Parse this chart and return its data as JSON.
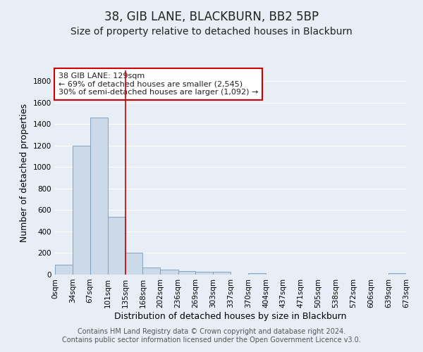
{
  "title": "38, GIB LANE, BLACKBURN, BB2 5BP",
  "subtitle": "Size of property relative to detached houses in Blackburn",
  "xlabel": "Distribution of detached houses by size in Blackburn",
  "ylabel": "Number of detached properties",
  "bin_edges": [
    0,
    34,
    67,
    101,
    135,
    168,
    202,
    236,
    269,
    303,
    337,
    370,
    404,
    437,
    471,
    505,
    538,
    572,
    606,
    639,
    673
  ],
  "bin_labels": [
    "0sqm",
    "34sqm",
    "67sqm",
    "101sqm",
    "135sqm",
    "168sqm",
    "202sqm",
    "236sqm",
    "269sqm",
    "303sqm",
    "337sqm",
    "370sqm",
    "404sqm",
    "437sqm",
    "471sqm",
    "505sqm",
    "538sqm",
    "572sqm",
    "606sqm",
    "639sqm",
    "673sqm"
  ],
  "bar_heights": [
    90,
    1200,
    1460,
    540,
    205,
    65,
    48,
    35,
    25,
    28,
    0,
    15,
    0,
    0,
    0,
    0,
    0,
    0,
    0,
    10
  ],
  "bar_color": "#ccd9e8",
  "bar_edge_color": "#7799bb",
  "vline_x": 135,
  "vline_color": "#cc0000",
  "ylim": [
    0,
    1900
  ],
  "yticks": [
    0,
    200,
    400,
    600,
    800,
    1000,
    1200,
    1400,
    1600,
    1800
  ],
  "annotation_box_text": "38 GIB LANE: 129sqm\n← 69% of detached houses are smaller (2,545)\n30% of semi-detached houses are larger (1,092) →",
  "annotation_box_color": "#ffffff",
  "annotation_box_edge_color": "#cc0000",
  "footer_line1": "Contains HM Land Registry data © Crown copyright and database right 2024.",
  "footer_line2": "Contains public sector information licensed under the Open Government Licence v3.0.",
  "background_color": "#e8eef5",
  "grid_color": "#ffffff",
  "title_fontsize": 12,
  "subtitle_fontsize": 10,
  "label_fontsize": 9,
  "tick_fontsize": 7.5,
  "annotation_fontsize": 8,
  "footer_fontsize": 7
}
